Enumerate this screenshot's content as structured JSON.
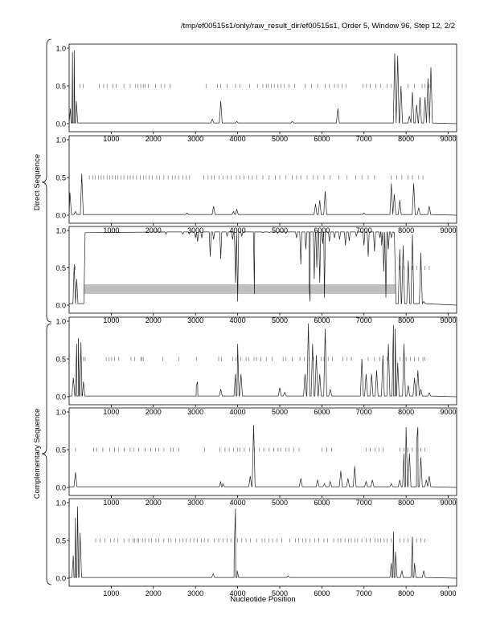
{
  "header": {
    "title": "/tmp/ef00515s1/only/raw_result_dir/ef00515s1, Order 5, Window 96, Step 12, 2/2"
  },
  "labels": {
    "direct": "Direct Sequence",
    "complementary": "Complementary Sequence",
    "xlabel": "Nucleotide Position"
  },
  "chart_data": {
    "type": "line",
    "title": "/tmp/ef00515s1/only/raw_result_dir/ef00515s1, Order 5, Window 96, Step 12, 2/2",
    "xlabel": "Nucleotide Position",
    "ylabel_groups": [
      "Direct Sequence",
      "Complementary Sequence"
    ],
    "xlim": [
      0,
      9200
    ],
    "ylim": [
      0,
      1.0
    ],
    "xticks": [
      1000,
      2000,
      3000,
      4000,
      5000,
      6000,
      7000,
      8000,
      9000
    ],
    "yticks": [
      0.0,
      0.5,
      1.0
    ],
    "panels": [
      {
        "group": "Direct Sequence",
        "peaks": [
          [
            30,
            0.2
          ],
          [
            80,
            0.95
          ],
          [
            120,
            0.97
          ],
          [
            170,
            0.3
          ],
          [
            3400,
            0.06
          ],
          [
            3600,
            0.3
          ],
          [
            3980,
            0.03
          ],
          [
            5300,
            0.03
          ],
          [
            6380,
            0.2
          ],
          [
            7730,
            0.93
          ],
          [
            7800,
            0.9
          ],
          [
            7880,
            0.5
          ],
          [
            8080,
            0.1
          ],
          [
            8150,
            0.42
          ],
          [
            8250,
            0.25
          ],
          [
            8330,
            0.35
          ],
          [
            8450,
            0.35
          ],
          [
            8520,
            0.6
          ],
          [
            8590,
            0.75
          ]
        ],
        "ticks": [
          120,
          260,
          330,
          720,
          820,
          900,
          1040,
          1120,
          1300,
          1450,
          1580,
          1630,
          1700,
          1760,
          1800,
          1880,
          2050,
          2180,
          2270,
          2400,
          3250,
          3520,
          3600,
          3750,
          3950,
          4050,
          4280,
          4470,
          4600,
          4680,
          4730,
          4800,
          4870,
          4960,
          5030,
          5110,
          5220,
          5360,
          5600,
          5750,
          5900,
          6080,
          6180,
          6300,
          6380,
          6480,
          6570,
          6980,
          7060,
          7150,
          7280,
          7390,
          7550,
          7650,
          8050,
          8200,
          8380,
          8450,
          8550
        ]
      },
      {
        "group": "Direct Sequence",
        "peaks": [
          [
            20,
            0.3
          ],
          [
            150,
            0.05
          ],
          [
            300,
            0.55
          ],
          [
            2800,
            0.03
          ],
          [
            3430,
            0.12
          ],
          [
            3900,
            0.05
          ],
          [
            3980,
            0.08
          ],
          [
            5850,
            0.15
          ],
          [
            5950,
            0.2
          ],
          [
            6080,
            0.32
          ],
          [
            7000,
            0.03
          ],
          [
            7650,
            0.42
          ],
          [
            7720,
            0.28
          ],
          [
            7850,
            0.2
          ],
          [
            8180,
            0.42
          ],
          [
            8300,
            0.1
          ],
          [
            8550,
            0.12
          ]
        ],
        "ticks": [
          300,
          480,
          560,
          620,
          700,
          760,
          820,
          900,
          960,
          1030,
          1100,
          1160,
          1230,
          1300,
          1390,
          1450,
          1520,
          1600,
          1690,
          1770,
          1830,
          1900,
          1970,
          2080,
          2150,
          2250,
          2350,
          2450,
          2520,
          2600,
          2700,
          2780,
          2860,
          3200,
          3300,
          3380,
          3450,
          3560,
          3650,
          3760,
          3850,
          3970,
          4050,
          4150,
          4260,
          4350,
          4450,
          4600,
          4750,
          4900,
          5000,
          5150,
          5300,
          5400,
          5500,
          5650,
          5800,
          5900,
          6050,
          6200,
          6400,
          6600,
          6800,
          6950,
          7100,
          7250,
          7650,
          7780,
          7900,
          8050,
          8150,
          8300,
          8400
        ]
      },
      {
        "group": "Direct Sequence",
        "region_box": [
          350,
          7750,
          0.15,
          0.28
        ],
        "dips": [
          [
            2300,
            0.95
          ],
          [
            2700,
            0.95
          ],
          [
            2850,
            0.95
          ],
          [
            3000,
            0.9
          ],
          [
            3050,
            0.85
          ],
          [
            3150,
            0.9
          ],
          [
            3350,
            0.65
          ],
          [
            3430,
            0.88
          ],
          [
            3600,
            0.62
          ],
          [
            3750,
            0.92
          ],
          [
            3880,
            0.88
          ],
          [
            3950,
            0.3
          ],
          [
            4000,
            0.05
          ],
          [
            4100,
            0.92
          ],
          [
            4380,
            0.8
          ],
          [
            4400,
            0.15
          ],
          [
            4600,
            0.97
          ],
          [
            4750,
            0.97
          ],
          [
            4950,
            0.96
          ],
          [
            5150,
            0.96
          ],
          [
            5400,
            0.9
          ],
          [
            5500,
            0.55
          ],
          [
            5620,
            0.75
          ],
          [
            5700,
            0.25
          ],
          [
            5720,
            0.05
          ],
          [
            5820,
            0.35
          ],
          [
            5880,
            0.5
          ],
          [
            5950,
            0.3
          ],
          [
            6020,
            0.82
          ],
          [
            6060,
            0.1
          ],
          [
            6180,
            0.85
          ],
          [
            6300,
            0.9
          ],
          [
            6420,
            0.88
          ],
          [
            6560,
            0.8
          ],
          [
            6650,
            0.86
          ],
          [
            6820,
            0.92
          ],
          [
            7000,
            0.8
          ],
          [
            7100,
            0.65
          ],
          [
            7250,
            0.72
          ],
          [
            7380,
            0.9
          ],
          [
            7420,
            0.8
          ],
          [
            7470,
            0.45
          ],
          [
            7520,
            0.1
          ],
          [
            7580,
            0.75
          ],
          [
            7650,
            0.9
          ]
        ],
        "peaks": [
          [
            120,
            0.55
          ],
          [
            180,
            0.35
          ],
          [
            7850,
            0.75
          ],
          [
            7930,
            0.8
          ],
          [
            8050,
            0.6
          ],
          [
            8150,
            0.95
          ],
          [
            8350,
            0.7
          ],
          [
            8420,
            0.05
          ]
        ],
        "ticks": [
          140,
          7850,
          7950,
          8050,
          8150,
          8250,
          8350,
          8450,
          8550
        ]
      },
      {
        "group": "Complementary Sequence",
        "peaks": [
          [
            100,
            0.25
          ],
          [
            180,
            0.7
          ],
          [
            220,
            0.78
          ],
          [
            280,
            0.72
          ],
          [
            340,
            0.2
          ],
          [
            3020,
            0.15
          ],
          [
            3050,
            0.2
          ],
          [
            3600,
            0.1
          ],
          [
            3950,
            0.3
          ],
          [
            4000,
            0.7
          ],
          [
            4080,
            0.3
          ],
          [
            5000,
            0.12
          ],
          [
            5120,
            0.06
          ],
          [
            5600,
            0.3
          ],
          [
            5680,
            0.97
          ],
          [
            5780,
            0.7
          ],
          [
            5870,
            0.55
          ],
          [
            5950,
            0.3
          ],
          [
            6080,
            0.9
          ],
          [
            6200,
            0.1
          ],
          [
            6950,
            0.5
          ],
          [
            7050,
            0.3
          ],
          [
            7180,
            0.3
          ],
          [
            7300,
            0.35
          ],
          [
            7450,
            0.55
          ],
          [
            7580,
            0.7
          ],
          [
            7700,
            0.95
          ],
          [
            7740,
            0.9
          ],
          [
            7800,
            0.45
          ],
          [
            7950,
            0.7
          ],
          [
            8050,
            0.15
          ],
          [
            8200,
            0.25
          ],
          [
            8280,
            0.35
          ],
          [
            8350,
            0.1
          ],
          [
            8550,
            0.05
          ]
        ],
        "ticks": [
          220,
          340,
          380,
          880,
          950,
          1010,
          1080,
          1180,
          1470,
          1560,
          1700,
          1730,
          1760,
          2220,
          2600,
          3020,
          3550,
          3620,
          3880,
          3960,
          4080,
          4200,
          4260,
          4390,
          4450,
          4550,
          4680,
          4820,
          5080,
          5150,
          5300,
          5480,
          5580,
          5700,
          5800,
          5980,
          6050,
          6150,
          6250,
          6500,
          6600,
          6700,
          7100,
          7250,
          7380,
          7550,
          7850,
          8000,
          8100,
          8200,
          8300,
          8400,
          8450
        ]
      },
      {
        "group": "Complementary Sequence",
        "peaks": [
          [
            150,
            0.2
          ],
          [
            3600,
            0.08
          ],
          [
            3650,
            0.05
          ],
          [
            4300,
            0.15
          ],
          [
            4380,
            0.83
          ],
          [
            5500,
            0.12
          ],
          [
            5900,
            0.1
          ],
          [
            6060,
            0.05
          ],
          [
            6200,
            0.08
          ],
          [
            6450,
            0.22
          ],
          [
            6620,
            0.12
          ],
          [
            6780,
            0.28
          ],
          [
            7050,
            0.08
          ],
          [
            7200,
            0.1
          ],
          [
            7650,
            0.05
          ],
          [
            7850,
            0.1
          ],
          [
            7950,
            0.45
          ],
          [
            8000,
            0.8
          ],
          [
            8080,
            0.45
          ],
          [
            8250,
            0.6
          ],
          [
            8280,
            0.8
          ],
          [
            8350,
            0.4
          ],
          [
            8480,
            0.1
          ],
          [
            8550,
            0.15
          ]
        ],
        "ticks": [
          150,
          580,
          650,
          800,
          960,
          1080,
          1180,
          1310,
          1450,
          1530,
          1650,
          1800,
          1940,
          2050,
          2130,
          2250,
          2410,
          2470,
          2600,
          3220,
          3580,
          3700,
          3800,
          3900,
          4000,
          4050,
          4160,
          4280,
          4400,
          4520,
          4620,
          4750,
          4860,
          4960,
          5020,
          5150,
          5220,
          5330,
          5460,
          6000,
          6120,
          6230,
          7050,
          7150,
          7260,
          7360,
          7460,
          7850,
          7950,
          8050,
          8150,
          8250,
          8350,
          8450
        ]
      },
      {
        "group": "Complementary Sequence",
        "peaks": [
          [
            100,
            0.3
          ],
          [
            150,
            0.8
          ],
          [
            200,
            0.95
          ],
          [
            260,
            0.6
          ],
          [
            3420,
            0.06
          ],
          [
            3920,
            0.4
          ],
          [
            3950,
            0.92
          ],
          [
            3990,
            0.1
          ],
          [
            5200,
            0.03
          ],
          [
            7650,
            0.2
          ],
          [
            7700,
            0.62
          ],
          [
            7750,
            0.35
          ],
          [
            7900,
            0.1
          ],
          [
            8150,
            0.55
          ],
          [
            8200,
            0.2
          ],
          [
            8420,
            0.1
          ]
        ],
        "ticks": [
          150,
          630,
          730,
          850,
          980,
          1070,
          1160,
          1300,
          1420,
          1520,
          1560,
          1620,
          1650,
          1740,
          1800,
          1890,
          1960,
          2060,
          2130,
          2250,
          2360,
          2420,
          2530,
          2630,
          2700,
          2780,
          2880,
          2960,
          3040,
          3140,
          3210,
          3300,
          3450,
          3550,
          3650,
          3750,
          3840,
          4000,
          4100,
          4200,
          4300,
          4450,
          4580,
          4650,
          4740,
          4830,
          4940,
          5050,
          5240,
          5370,
          5450,
          5540,
          5620,
          5720,
          5830,
          5930,
          6050,
          6140,
          6280,
          6380,
          6450,
          6550,
          6630,
          6700,
          6790,
          6850,
          6950,
          7050,
          7150,
          7260,
          7330,
          7400,
          7480,
          7550,
          7650,
          7850,
          7950,
          8050,
          8150,
          8250,
          8350,
          8450
        ]
      }
    ]
  }
}
